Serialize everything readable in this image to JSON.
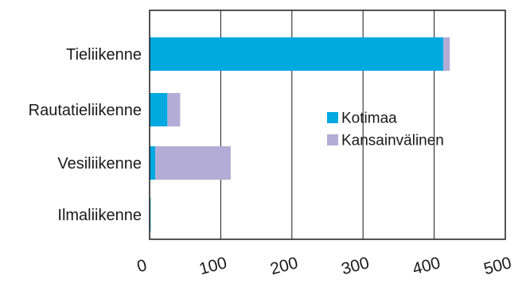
{
  "chart_data": {
    "type": "bar",
    "orientation": "horizontal",
    "stacked": true,
    "title": "",
    "xlabel": "",
    "ylabel": "",
    "xlim": [
      0,
      500
    ],
    "x_ticks": [
      "0",
      "100",
      "200",
      "300",
      "400",
      "500"
    ],
    "categories": [
      "Tieliikenne",
      "Rautatieliikenne",
      "Vesiliikenne",
      "Ilmaliikenne"
    ],
    "series": [
      {
        "name": "Kotimaa",
        "color": "#00a9e0",
        "values": [
          413,
          25,
          8,
          1.5
        ]
      },
      {
        "name": "Kansainvälinen",
        "color": "#b3acd6",
        "values": [
          9,
          18,
          106,
          0
        ]
      }
    ],
    "grid": {
      "vertical": true,
      "horizontal": false
    },
    "legend": {
      "position": "right-inside"
    }
  }
}
